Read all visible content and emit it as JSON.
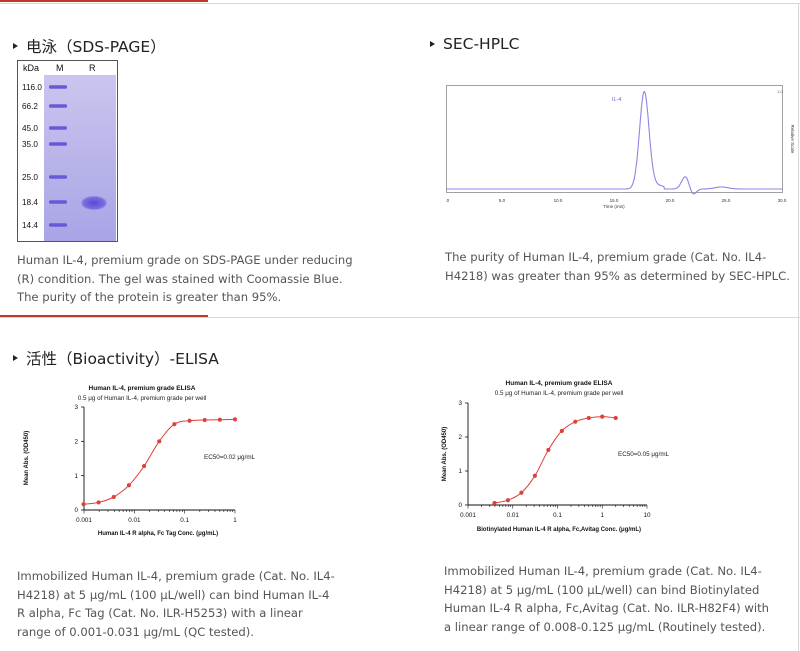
{
  "sections": {
    "sds": {
      "title": "电泳（SDS-PAGE）",
      "caption": "Human IL-4, premium grade on SDS-PAGE under reducing (R) condition. The gel was stained with Coomassie Blue. The purity of the protein is greater than 95%.",
      "gel": {
        "headers": [
          "kDa",
          "M",
          "R"
        ],
        "markers": [
          "116.0",
          "66.2",
          "45.0",
          "35.0",
          "25.0",
          "18.4",
          "14.4"
        ]
      }
    },
    "hplc": {
      "title": "SEC-HPLC",
      "caption": "The purity of Human IL-4, premium grade (Cat. No. IL4-H4218) was greater than 95% as determined by SEC-HPLC.",
      "chart": {
        "peak_label": "IL-4",
        "xlabel": "Time (min)",
        "ylabel": "Relative Scale",
        "x_ticks": [
          "0.0",
          "5.0",
          "10.0",
          "15.0",
          "20.0",
          "25.0",
          "30.0"
        ]
      }
    },
    "bio": {
      "title": "活性（Bioactivity）-ELISA"
    },
    "elisa1": {
      "caption": "Immobilized Human IL-4, premium grade (Cat. No. IL4-H4218) at 5 μg/mL (100 μL/well) can bind Human IL-4 R alpha, Fc Tag (Cat. No. ILR-H5253) with a linear range of 0.001-0.031 μg/mL (QC tested)."
    },
    "elisa2": {
      "caption": "Immobilized Human IL-4, premium grade (Cat. No. IL4-H4218) at 5 μg/mL (100 μL/well) can bind Biotinylated Human IL-4 R alpha, Fc,Avitag (Cat. No. ILR-H82F4) with a linear range of 0.008-0.125 μg/mL (Routinely tested)."
    }
  },
  "chart_data": [
    {
      "type": "line",
      "title": "Human IL-4, premium grade ELISA",
      "subtitle": "0.5 μg of Human IL-4, premium grade per well",
      "xlabel": "Human IL-4 R alpha, Fc Tag Conc. (μg/mL)",
      "ylabel": "Mean Abs. (OD450)",
      "xscale": "log",
      "xlim": [
        0.001,
        1
      ],
      "ylim": [
        0,
        3
      ],
      "x_ticks": [
        "0.001",
        "0.01",
        "0.1",
        "1"
      ],
      "y_ticks": [
        "0",
        "1",
        "2",
        "3"
      ],
      "annotation": "EC50=0.02  μg/mL",
      "color": "#e0403a",
      "x": [
        0.00098,
        0.00195,
        0.0039,
        0.0078,
        0.0156,
        0.03125,
        0.0625,
        0.125,
        0.25,
        0.5,
        1
      ],
      "y": [
        0.17,
        0.22,
        0.38,
        0.72,
        1.28,
        2.0,
        2.5,
        2.6,
        2.62,
        2.63,
        2.64
      ]
    },
    {
      "type": "line",
      "title": "Human IL-4, premium grade ELISA",
      "subtitle": "0.5 μg of Human IL-4, premium grade per well",
      "xlabel": "Biotinylated Human IL-4 R alpha, Fc,Avitag Conc. (μg/mL)",
      "ylabel": "Mean Abs. (OD450)",
      "xscale": "log",
      "xlim": [
        0.001,
        10
      ],
      "ylim": [
        0,
        3
      ],
      "x_ticks": [
        "0.001",
        "0.01",
        "0.1",
        "1",
        "10"
      ],
      "y_ticks": [
        "0",
        "1",
        "2",
        "3"
      ],
      "annotation": "EC50=0.05  μg/mL",
      "color": "#e0403a",
      "x": [
        0.0039,
        0.0078,
        0.0156,
        0.03125,
        0.0625,
        0.125,
        0.25,
        0.5,
        1,
        2
      ],
      "y": [
        0.06,
        0.14,
        0.36,
        0.86,
        1.62,
        2.18,
        2.45,
        2.56,
        2.6,
        2.56
      ]
    }
  ]
}
